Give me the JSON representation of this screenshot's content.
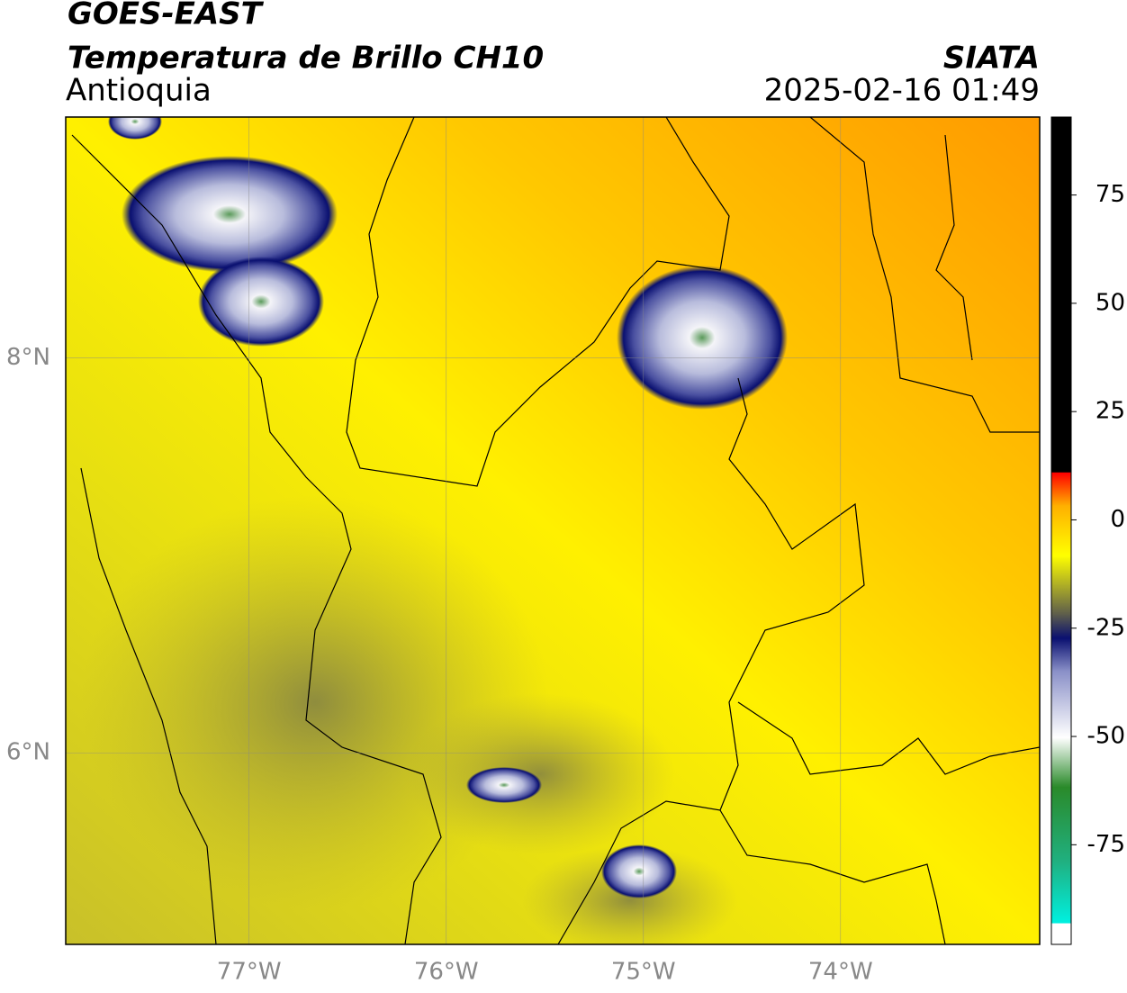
{
  "header": {
    "title": "GOES-EAST",
    "subtitle": "Temperatura de Brillo CH10",
    "region": "Antioquia",
    "source": "SIATA",
    "datetime": "2025-02-16 01:49"
  },
  "map": {
    "xlim": [
      -77.93,
      -72.99
    ],
    "ylim": [
      5.03,
      9.22
    ],
    "xticks": [
      {
        "value": -77,
        "label": "77°W"
      },
      {
        "value": -76,
        "label": "76°W"
      },
      {
        "value": -75,
        "label": "75°W"
      },
      {
        "value": -74,
        "label": "74°W"
      }
    ],
    "yticks": [
      {
        "value": 8,
        "label": "8°N"
      },
      {
        "value": 6,
        "label": "6°N"
      }
    ],
    "grid": true,
    "colorbar": {
      "lim": [
        -98,
        93
      ],
      "ticks": [
        75,
        50,
        25,
        0,
        -25,
        -50,
        -75
      ]
    }
  }
}
